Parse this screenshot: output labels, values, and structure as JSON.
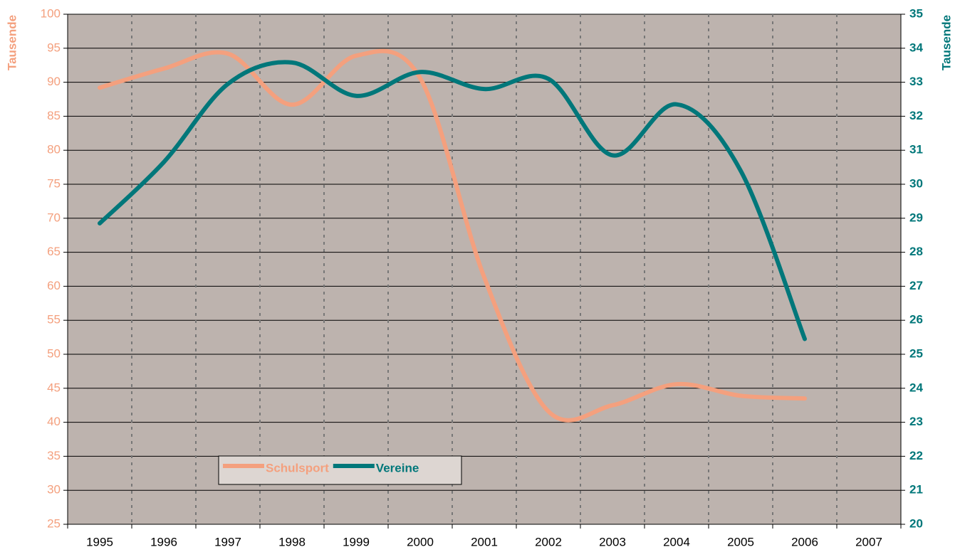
{
  "chart_data": {
    "type": "line",
    "categories": [
      "1995",
      "1996",
      "1997",
      "1998",
      "1999",
      "2000",
      "2001",
      "2002",
      "2003",
      "2004",
      "2005",
      "2006",
      "2007"
    ],
    "series": [
      {
        "name": "Schulsport",
        "color": "#f4a07e",
        "values": [
          89.2,
          92,
          94.2,
          86.7,
          93.9,
          90.6,
          61.3,
          41.6,
          42.5,
          45.6,
          43.9,
          43.5,
          null
        ]
      },
      {
        "name": "Vereine",
        "color": "#00777a",
        "axis": "y2",
        "values": [
          28.85,
          30.65,
          32.95,
          33.58,
          32.6,
          33.3,
          32.8,
          33.1,
          30.85,
          32.35,
          30.4,
          25.45,
          null
        ]
      }
    ],
    "ylabel": "Tausende",
    "y2label": "Tausende",
    "ylim": [
      25,
      100
    ],
    "yticks": [
      25,
      30,
      35,
      40,
      45,
      50,
      55,
      60,
      65,
      70,
      75,
      80,
      85,
      90,
      95,
      100
    ],
    "y2lim": [
      20,
      35
    ],
    "y2ticks": [
      20,
      21,
      22,
      23,
      24,
      25,
      26,
      27,
      28,
      29,
      30,
      31,
      32,
      33,
      34,
      35
    ],
    "grid": true,
    "legend": "lower left"
  }
}
